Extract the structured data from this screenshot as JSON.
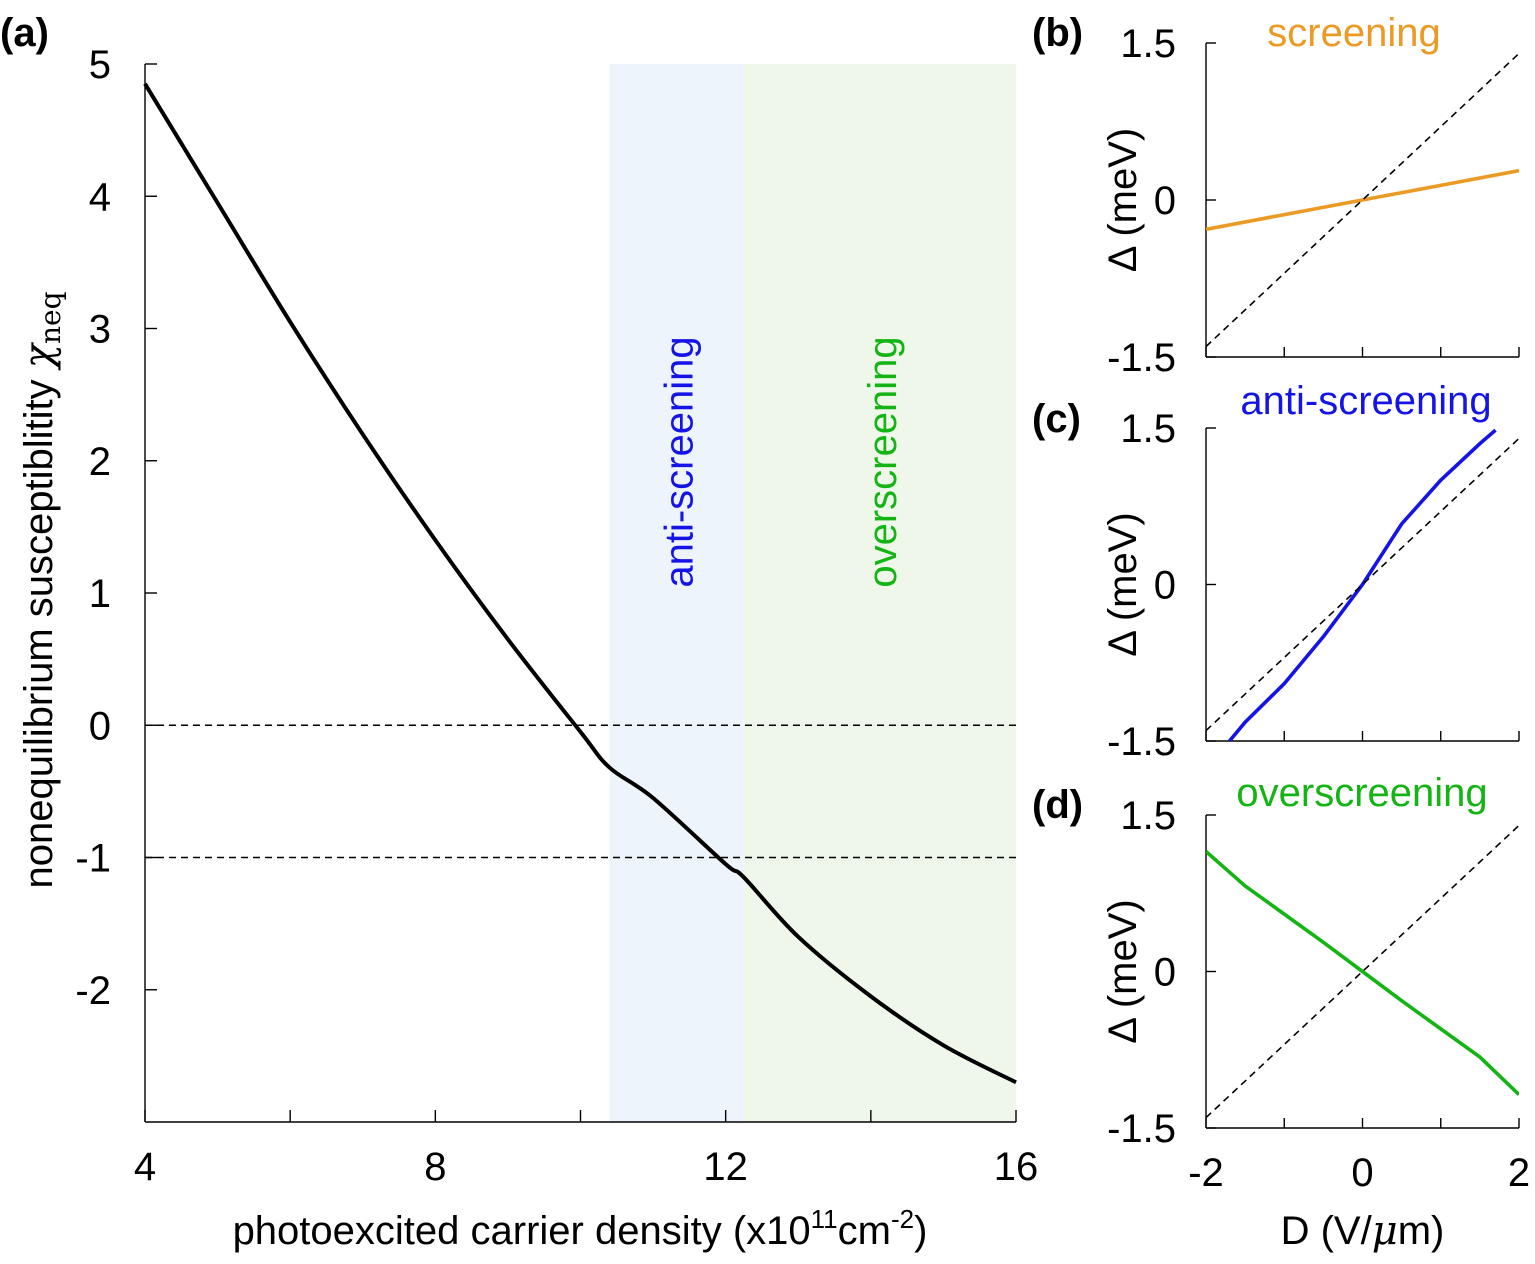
{
  "chart_data": [
    {
      "panel": "(a)",
      "type": "line",
      "title": "",
      "xlabel": "photoexcited carrier density (x10",
      "xlabel_exp": "11",
      "xlabel_unit": "cm",
      "xlabel_unit_exp": "-2",
      "xlabel_close": ")",
      "ylabel": "nonequilibrium susceptiblitity",
      "ylabel_symbol": "χ",
      "ylabel_sub": "neq",
      "xlim": [
        4,
        16
      ],
      "ylim": [
        -3,
        5
      ],
      "xticks": [
        4,
        8,
        12,
        16
      ],
      "xticks_minor": [
        6,
        10,
        14
      ],
      "xtick_labels": [
        "4",
        "8",
        "12",
        "16"
      ],
      "yticks": [
        -2,
        -1,
        0,
        1,
        2,
        3,
        4,
        5
      ],
      "ytick_labels": [
        "-2",
        "-1",
        "0",
        "1",
        "2",
        "3",
        "4",
        "5"
      ],
      "series": [
        {
          "name": "chi_neq",
          "color": "#000000",
          "x": [
            4,
            5,
            6,
            7,
            8,
            9,
            10,
            10.4,
            11,
            12,
            12.25,
            13,
            14,
            15,
            16
          ],
          "y": [
            4.85,
            3.95,
            3.05,
            2.2,
            1.4,
            0.65,
            -0.05,
            -0.32,
            -0.55,
            -1.05,
            -1.15,
            -1.6,
            -2.05,
            -2.42,
            -2.7
          ]
        }
      ],
      "hlines": [
        0,
        -1
      ],
      "regions": [
        {
          "label": "anti-screening",
          "x": [
            10.4,
            12.25
          ],
          "fill": "#eef4fc",
          "text_color": "#1414e6"
        },
        {
          "label": "overscreening",
          "x": [
            12.25,
            16
          ],
          "fill": "#eef7ea",
          "text_color": "#14b414"
        }
      ]
    },
    {
      "panel": "(b)",
      "type": "line",
      "title": "screening",
      "title_color": "#eb9a24",
      "xlabel": "",
      "ylabel": "Δ (meV)",
      "xlim": [
        -2,
        2
      ],
      "ylim": [
        -1.5,
        1.5
      ],
      "ytick_labels": [
        "-1.5",
        "0",
        "1.5"
      ],
      "yticks": [
        -1.5,
        0,
        1.5
      ],
      "series": [
        {
          "name": "screening",
          "color": "#eb9a24",
          "x": [
            -2,
            2
          ],
          "y": [
            -0.28,
            0.28
          ]
        },
        {
          "name": "reference",
          "color": "#000000",
          "dashed": true,
          "x": [
            -2,
            2
          ],
          "y": [
            -1.4,
            1.4
          ]
        }
      ]
    },
    {
      "panel": "(c)",
      "type": "line",
      "title": "anti-screening",
      "title_color": "#1414e6",
      "xlabel": "",
      "ylabel": "Δ (meV)",
      "xlim": [
        -2,
        2
      ],
      "ylim": [
        -1.5,
        1.5
      ],
      "ytick_labels": [
        "-1.5",
        "0",
        "1.5"
      ],
      "yticks": [
        -1.5,
        0,
        1.5
      ],
      "series": [
        {
          "name": "anti-screening",
          "color": "#1414e6",
          "x": [
            -1.7,
            -1.5,
            -1.0,
            -0.5,
            0,
            0.5,
            1.0,
            1.5,
            1.7
          ],
          "y": [
            -1.5,
            -1.32,
            -0.95,
            -0.5,
            0,
            0.58,
            1.0,
            1.35,
            1.48
          ]
        },
        {
          "name": "reference",
          "color": "#000000",
          "dashed": true,
          "x": [
            -2,
            2
          ],
          "y": [
            -1.4,
            1.4
          ]
        }
      ]
    },
    {
      "panel": "(d)",
      "type": "line",
      "title": "overscreening",
      "title_color": "#14b414",
      "xlabel": "D (V/",
      "xlabel_mu": "μ",
      "xlabel_unit": "m)",
      "ylabel": "Δ (meV)",
      "xlim": [
        -2,
        2
      ],
      "ylim": [
        -1.5,
        1.5
      ],
      "xticks": [
        -2,
        0,
        2
      ],
      "xtick_labels": [
        "-2",
        "0",
        "2"
      ],
      "ytick_labels": [
        "-1.5",
        "0",
        "1.5"
      ],
      "yticks": [
        -1.5,
        0,
        1.5
      ],
      "series": [
        {
          "name": "overscreening",
          "color": "#14b414",
          "x": [
            -2,
            -1.5,
            -1.0,
            -0.5,
            0,
            0.5,
            1.0,
            1.5,
            2
          ],
          "y": [
            1.15,
            0.82,
            0.55,
            0.28,
            0,
            -0.28,
            -0.55,
            -0.82,
            -1.18
          ]
        },
        {
          "name": "reference",
          "color": "#000000",
          "dashed": true,
          "x": [
            -2,
            2
          ],
          "y": [
            -1.4,
            1.4
          ]
        }
      ]
    }
  ]
}
